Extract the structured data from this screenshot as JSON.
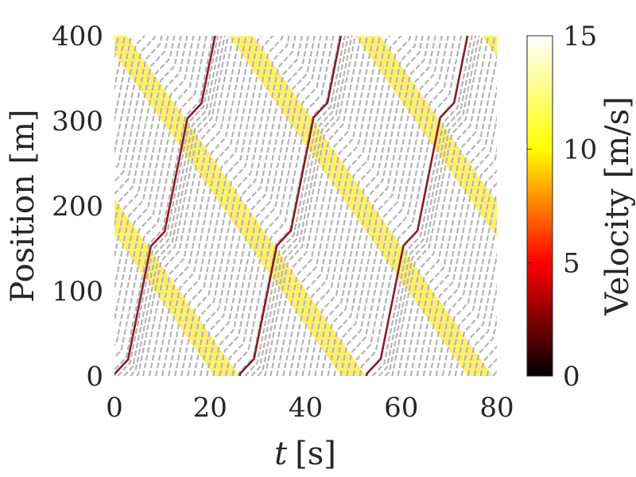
{
  "chart_data": {
    "type": "heatmap",
    "title": "",
    "xlabel": "t [s]",
    "xlabel_var": "t",
    "xlabel_unit": "[s]",
    "ylabel": "Position [m]",
    "xlim": [
      0,
      80
    ],
    "ylim": [
      0,
      400
    ],
    "xticks": [
      0,
      20,
      40,
      60,
      80
    ],
    "yticks": [
      0,
      100,
      200,
      300,
      400
    ],
    "grid": false,
    "colorbar": {
      "label": "Velocity [m/s]",
      "range": [
        0,
        15
      ],
      "ticks": [
        0,
        5,
        10,
        15
      ],
      "colormap": "hot",
      "colors": [
        "#000000",
        "#ff0000",
        "#ffff00",
        "#ffffff"
      ]
    },
    "background_trajectories": {
      "color": "#b4b4b4",
      "time_spacing": 1.333,
      "fast_speed": 28,
      "slow_speed": 6,
      "slow_time": 1.9
    },
    "wave_bands": {
      "color": "#ffe93a",
      "speed": -8,
      "period": 26.5,
      "width": 2.6
    },
    "highlight_trajectory": {
      "color": "#8b1a2a",
      "start_times": [
        -0.2,
        26.2,
        52.7
      ]
    }
  }
}
